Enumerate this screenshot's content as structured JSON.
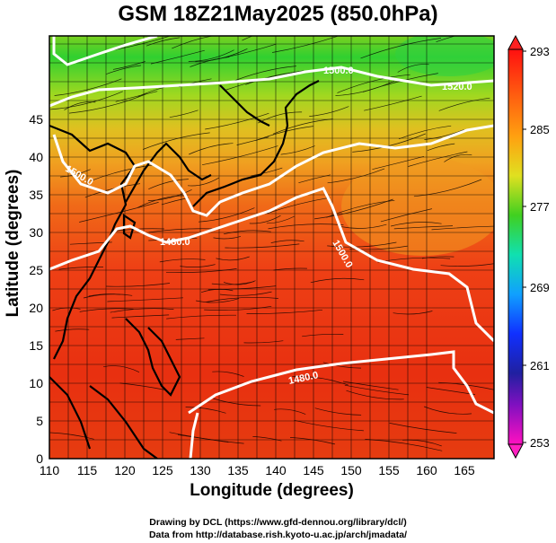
{
  "title": "GSM 18Z21May2025 (850.0hPa)",
  "xlabel": "Longitude (degrees)",
  "ylabel": "Latitude  (degrees)",
  "lon_ticks": [
    "110",
    "115",
    "120",
    "125",
    "130",
    "135",
    "140",
    "145",
    "150",
    "155",
    "160",
    "165"
  ],
  "lat_ticks": [
    "0",
    "5",
    "10",
    "15",
    "20",
    "25",
    "30",
    "35",
    "40",
    "45"
  ],
  "colorbar": {
    "labels": [
      "293",
      "285",
      "277",
      "269",
      "261",
      "253"
    ],
    "colors": [
      "#ff1010",
      "#ff9010",
      "#f0e020",
      "#30d020",
      "#10e0c0",
      "#10a0ff",
      "#1020ff",
      "#2020a0",
      "#a010c0",
      "#ff10c0"
    ]
  },
  "contour_labels": [
    "1500.0",
    "1520.0",
    "1500.0",
    "1480.0",
    "1500.0",
    "1480.0"
  ],
  "credits": [
    "Drawing by DCL (https://www.gfd-dennou.org/library/dcl/)",
    "Data from http://database.rish.kyoto-u.ac.jp/arch/jmadata/"
  ],
  "colors": {
    "frame": "#000000",
    "contour": "#ffffff"
  }
}
